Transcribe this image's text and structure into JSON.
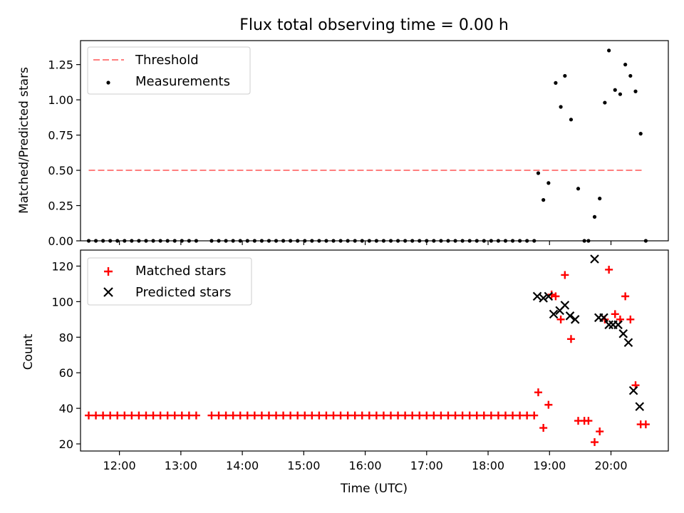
{
  "chart_data": [
    {
      "type": "scatter",
      "title": "Flux total observing time = 0.00 h",
      "ylabel": "Matched/Predicted stars",
      "xlabel": "",
      "xlim": [
        "11:22",
        "20:56"
      ],
      "ylim": [
        0,
        1.42
      ],
      "yticks": [
        "0.00",
        "0.25",
        "0.50",
        "0.75",
        "1.00",
        "1.25"
      ],
      "xtick_labels": [
        "12:00",
        "13:00",
        "14:00",
        "15:00",
        "16:00",
        "17:00",
        "18:00",
        "19:00",
        "20:00"
      ],
      "legend_position": "top-left",
      "grid": false,
      "series": [
        {
          "name": "Threshold",
          "kind": "dashed-line",
          "color": "#ff7f7f",
          "x": [
            "11:30",
            "20:30"
          ],
          "y": [
            0.5,
            0.5
          ]
        },
        {
          "name": "Measurements",
          "kind": "points",
          "color": "#000000",
          "points": [
            [
              "11:30",
              0
            ],
            [
              "11:37",
              0
            ],
            [
              "11:44",
              0
            ],
            [
              "11:51",
              0
            ],
            [
              "11:58",
              0
            ],
            [
              "12:05",
              0
            ],
            [
              "12:12",
              0
            ],
            [
              "12:19",
              0
            ],
            [
              "12:26",
              0
            ],
            [
              "12:33",
              0
            ],
            [
              "12:40",
              0
            ],
            [
              "12:47",
              0
            ],
            [
              "12:54",
              0
            ],
            [
              "13:01",
              0
            ],
            [
              "13:08",
              0
            ],
            [
              "13:15",
              0
            ],
            [
              "13:30",
              0
            ],
            [
              "13:37",
              0
            ],
            [
              "13:44",
              0
            ],
            [
              "13:51",
              0
            ],
            [
              "13:58",
              0
            ],
            [
              "14:05",
              0
            ],
            [
              "14:12",
              0
            ],
            [
              "14:19",
              0
            ],
            [
              "14:26",
              0
            ],
            [
              "14:33",
              0
            ],
            [
              "14:40",
              0
            ],
            [
              "14:47",
              0
            ],
            [
              "14:54",
              0
            ],
            [
              "15:01",
              0
            ],
            [
              "15:08",
              0
            ],
            [
              "15:15",
              0
            ],
            [
              "15:22",
              0
            ],
            [
              "15:29",
              0
            ],
            [
              "15:36",
              0
            ],
            [
              "15:43",
              0
            ],
            [
              "15:50",
              0
            ],
            [
              "15:57",
              0
            ],
            [
              "16:04",
              0
            ],
            [
              "16:11",
              0
            ],
            [
              "16:18",
              0
            ],
            [
              "16:25",
              0
            ],
            [
              "16:32",
              0
            ],
            [
              "16:39",
              0
            ],
            [
              "16:46",
              0
            ],
            [
              "16:53",
              0
            ],
            [
              "17:00",
              0
            ],
            [
              "17:07",
              0
            ],
            [
              "17:14",
              0
            ],
            [
              "17:21",
              0
            ],
            [
              "17:28",
              0
            ],
            [
              "17:35",
              0
            ],
            [
              "17:42",
              0
            ],
            [
              "17:49",
              0
            ],
            [
              "17:56",
              0
            ],
            [
              "18:03",
              0
            ],
            [
              "18:10",
              0
            ],
            [
              "18:17",
              0
            ],
            [
              "18:24",
              0
            ],
            [
              "18:31",
              0
            ],
            [
              "18:38",
              0
            ],
            [
              "18:45",
              0
            ],
            [
              "18:49",
              0.48
            ],
            [
              "18:54",
              0.29
            ],
            [
              "18:59",
              0.41
            ],
            [
              "19:06",
              1.12
            ],
            [
              "19:11",
              0.95
            ],
            [
              "19:15",
              1.17
            ],
            [
              "19:21",
              0.86
            ],
            [
              "19:28",
              0.37
            ],
            [
              "19:34",
              0
            ],
            [
              "19:38",
              0
            ],
            [
              "19:44",
              0.17
            ],
            [
              "19:49",
              0.3
            ],
            [
              "19:54",
              0.98
            ],
            [
              "19:58",
              1.35
            ],
            [
              "20:04",
              1.07
            ],
            [
              "20:09",
              1.04
            ],
            [
              "20:14",
              1.25
            ],
            [
              "20:19",
              1.17
            ],
            [
              "20:24",
              1.06
            ],
            [
              "20:29",
              0.76
            ],
            [
              "20:34",
              0
            ]
          ]
        }
      ]
    },
    {
      "type": "scatter",
      "title": "",
      "ylabel": "Count",
      "xlabel": "Time (UTC)",
      "xlim": [
        "11:22",
        "20:56"
      ],
      "ylim": [
        16,
        129
      ],
      "yticks": [
        "20",
        "40",
        "60",
        "80",
        "100",
        "120"
      ],
      "xtick_labels": [
        "12:00",
        "13:00",
        "14:00",
        "15:00",
        "16:00",
        "17:00",
        "18:00",
        "19:00",
        "20:00"
      ],
      "legend_position": "top-left",
      "grid": false,
      "series": [
        {
          "name": "Matched stars",
          "kind": "plus",
          "color": "#ff0000",
          "points": [
            [
              "11:30",
              36
            ],
            [
              "11:37",
              36
            ],
            [
              "11:44",
              36
            ],
            [
              "11:51",
              36
            ],
            [
              "11:58",
              36
            ],
            [
              "12:05",
              36
            ],
            [
              "12:12",
              36
            ],
            [
              "12:19",
              36
            ],
            [
              "12:26",
              36
            ],
            [
              "12:33",
              36
            ],
            [
              "12:40",
              36
            ],
            [
              "12:47",
              36
            ],
            [
              "12:54",
              36
            ],
            [
              "13:01",
              36
            ],
            [
              "13:08",
              36
            ],
            [
              "13:15",
              36
            ],
            [
              "13:30",
              36
            ],
            [
              "13:37",
              36
            ],
            [
              "13:44",
              36
            ],
            [
              "13:51",
              36
            ],
            [
              "13:58",
              36
            ],
            [
              "14:05",
              36
            ],
            [
              "14:12",
              36
            ],
            [
              "14:19",
              36
            ],
            [
              "14:26",
              36
            ],
            [
              "14:33",
              36
            ],
            [
              "14:40",
              36
            ],
            [
              "14:47",
              36
            ],
            [
              "14:54",
              36
            ],
            [
              "15:01",
              36
            ],
            [
              "15:08",
              36
            ],
            [
              "15:15",
              36
            ],
            [
              "15:22",
              36
            ],
            [
              "15:29",
              36
            ],
            [
              "15:36",
              36
            ],
            [
              "15:43",
              36
            ],
            [
              "15:50",
              36
            ],
            [
              "15:57",
              36
            ],
            [
              "16:04",
              36
            ],
            [
              "16:11",
              36
            ],
            [
              "16:18",
              36
            ],
            [
              "16:25",
              36
            ],
            [
              "16:32",
              36
            ],
            [
              "16:39",
              36
            ],
            [
              "16:46",
              36
            ],
            [
              "16:53",
              36
            ],
            [
              "17:00",
              36
            ],
            [
              "17:07",
              36
            ],
            [
              "17:14",
              36
            ],
            [
              "17:21",
              36
            ],
            [
              "17:28",
              36
            ],
            [
              "17:35",
              36
            ],
            [
              "17:42",
              36
            ],
            [
              "17:49",
              36
            ],
            [
              "17:56",
              36
            ],
            [
              "18:03",
              36
            ],
            [
              "18:10",
              36
            ],
            [
              "18:17",
              36
            ],
            [
              "18:24",
              36
            ],
            [
              "18:31",
              36
            ],
            [
              "18:38",
              36
            ],
            [
              "18:45",
              36
            ],
            [
              "18:49",
              49
            ],
            [
              "18:54",
              29
            ],
            [
              "18:59",
              42
            ],
            [
              "19:02",
              104
            ],
            [
              "19:06",
              103
            ],
            [
              "19:11",
              90
            ],
            [
              "19:15",
              115
            ],
            [
              "19:21",
              79
            ],
            [
              "19:28",
              33
            ],
            [
              "19:34",
              33
            ],
            [
              "19:38",
              33
            ],
            [
              "19:44",
              21
            ],
            [
              "19:49",
              27
            ],
            [
              "19:54",
              90
            ],
            [
              "19:58",
              118
            ],
            [
              "20:04",
              93
            ],
            [
              "20:09",
              90
            ],
            [
              "20:14",
              103
            ],
            [
              "20:19",
              90
            ],
            [
              "20:24",
              53
            ],
            [
              "20:29",
              31
            ],
            [
              "20:34",
              31
            ]
          ]
        },
        {
          "name": "Predicted stars",
          "kind": "cross",
          "color": "#000000",
          "points": [
            [
              "18:48",
              103
            ],
            [
              "18:54",
              102
            ],
            [
              "18:59",
              103
            ],
            [
              "19:04",
              93
            ],
            [
              "19:10",
              95
            ],
            [
              "19:15",
              98
            ],
            [
              "19:20",
              92
            ],
            [
              "19:25",
              90
            ],
            [
              "19:44",
              124
            ],
            [
              "19:48",
              91
            ],
            [
              "19:53",
              91
            ],
            [
              "19:58",
              87
            ],
            [
              "20:02",
              87
            ],
            [
              "20:07",
              87
            ],
            [
              "20:12",
              82
            ],
            [
              "20:17",
              77
            ],
            [
              "20:22",
              50
            ],
            [
              "20:28",
              41
            ]
          ]
        }
      ]
    }
  ]
}
